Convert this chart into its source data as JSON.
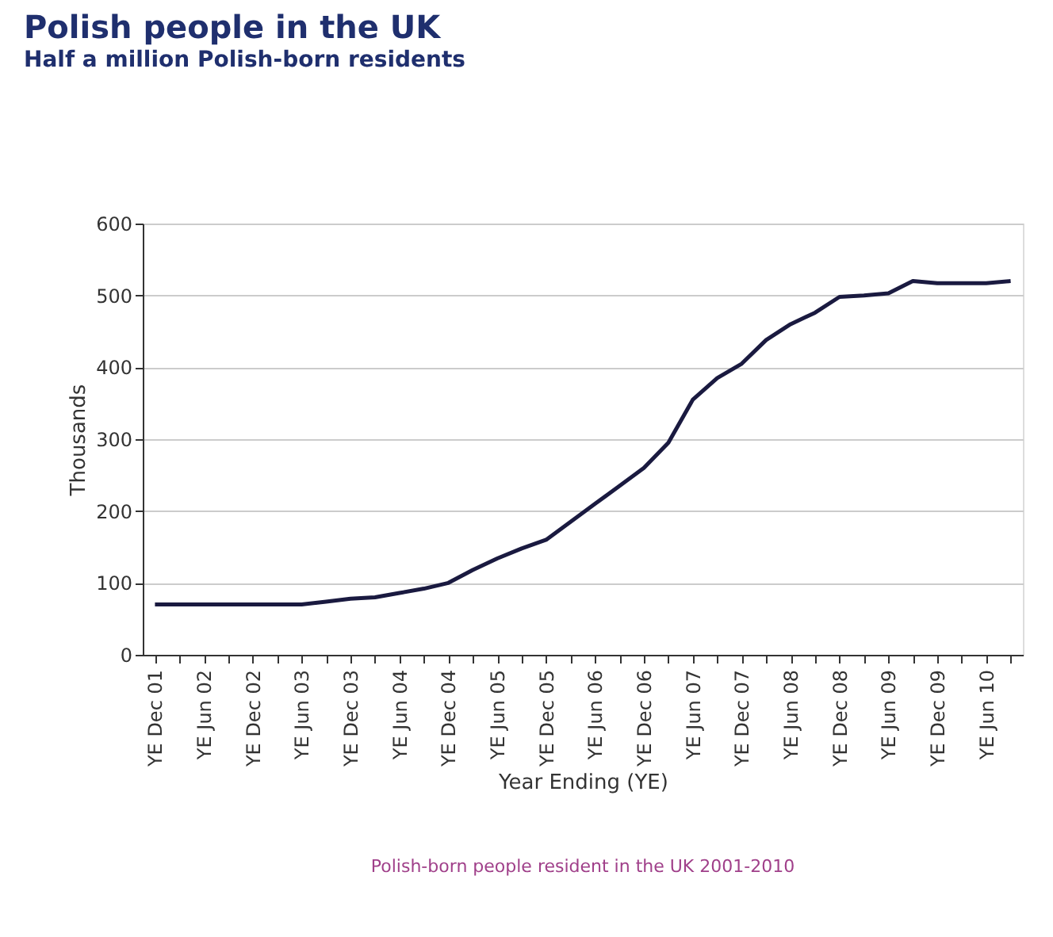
{
  "chart_data": {
    "type": "line",
    "title": "Polish people in the UK",
    "subtitle": "Half a million Polish-born residents",
    "xlabel": "Year Ending (YE)",
    "ylabel": "Thousands",
    "annotations": [
      "Polish-born people resident in the UK 2001-2010"
    ],
    "categories": [
      "YE Dec 01",
      null,
      "YE Jun 02",
      null,
      "YE Dec 02",
      null,
      "YE Jun 03",
      null,
      "YE Dec 03",
      null,
      "YE Jun 04",
      null,
      "YE Dec 04",
      null,
      "YE Jun 05",
      null,
      "YE Dec 05",
      null,
      "YE Jun 06",
      null,
      "YE Dec 06",
      null,
      "YE Jun 07",
      null,
      "YE Dec 07",
      null,
      "YE Jun 08",
      null,
      "YE Dec 08",
      null,
      "YE Jun 09",
      null,
      "YE Dec 09",
      null,
      "YE Jun 10",
      null
    ],
    "series": [
      {
        "color": "#1a1a40",
        "values": [
          70,
          70,
          70,
          70,
          70,
          70,
          70,
          74,
          78,
          80,
          86,
          92,
          100,
          118,
          134,
          148,
          160,
          185,
          210,
          235,
          260,
          295,
          355,
          385,
          405,
          438,
          460,
          476,
          498,
          500,
          503,
          520,
          517,
          517,
          517,
          520
        ]
      }
    ],
    "ylim": [
      0,
      600
    ],
    "yticks": [
      0,
      100,
      200,
      300,
      400,
      500,
      600
    ],
    "grid": "y",
    "marker": "none",
    "line_style": "solid"
  }
}
